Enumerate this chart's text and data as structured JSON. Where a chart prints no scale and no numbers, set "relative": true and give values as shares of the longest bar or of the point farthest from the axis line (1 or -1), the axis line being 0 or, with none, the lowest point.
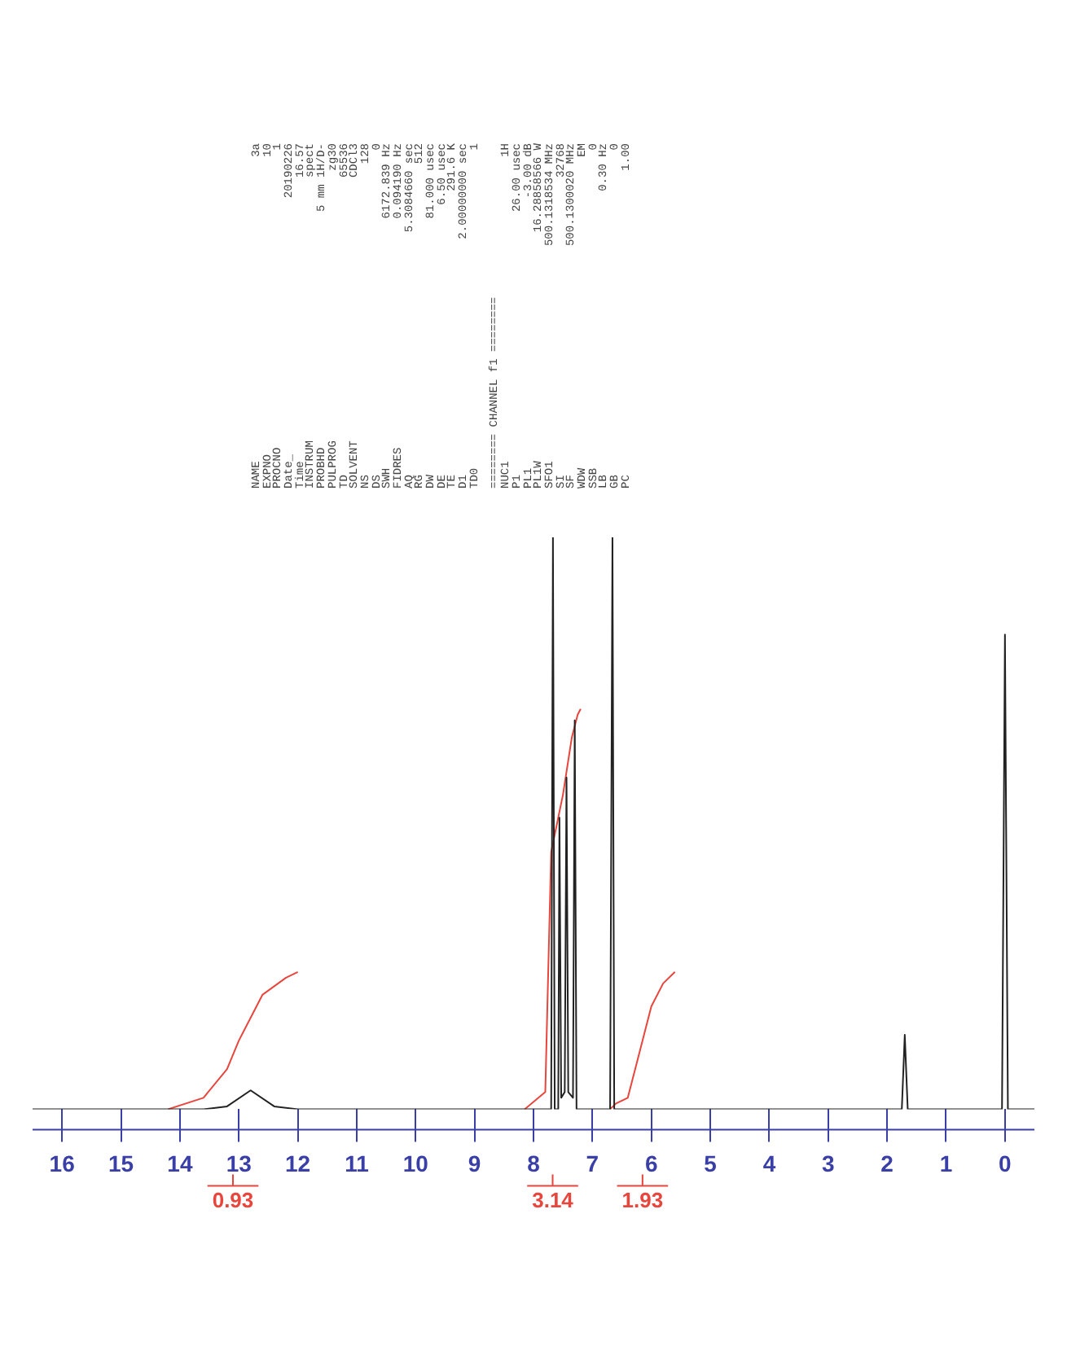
{
  "chart_data": {
    "type": "line",
    "relative": true,
    "legend": "bottom",
    "xlim": [
      16.5,
      -0.5
    ],
    "xticks": [
      0,
      1,
      2,
      3,
      4,
      5,
      6,
      7,
      8,
      9,
      10,
      11,
      12,
      13,
      14,
      15,
      16
    ],
    "series": [
      {
        "color": "#222222",
        "x": [
          16.5,
          13.6,
          13.2,
          12.8,
          12.4,
          12.0,
          8.0,
          7.7,
          7.67,
          7.64,
          7.58,
          7.56,
          7.53,
          7.47,
          7.44,
          7.41,
          7.33,
          7.3,
          7.27,
          6.7,
          6.66,
          6.63,
          1.75,
          1.7,
          1.65,
          0.05,
          0,
          -0.05,
          -0.5
        ],
        "values": [
          0,
          0,
          0.005,
          0.033,
          0.005,
          0,
          0,
          0,
          1.0,
          0,
          0,
          0.51,
          0.02,
          0.03,
          0.58,
          0.03,
          0.02,
          0.68,
          0,
          0,
          1.0,
          0,
          0,
          0.13,
          0,
          0,
          0.83,
          0,
          0
        ]
      },
      {
        "name": "0.93",
        "color": "#e8453c",
        "x": [
          14.2,
          13.6,
          13.2,
          13.0,
          12.6,
          12.2,
          12.0
        ],
        "values": [
          0,
          0.02,
          0.07,
          0.12,
          0.2,
          0.23,
          0.24
        ]
      },
      {
        "name": "1.93",
        "color": "#e8453c",
        "x": [
          6.7,
          6.6,
          6.4,
          6.2,
          6.0,
          5.8,
          5.6
        ],
        "values": [
          0,
          0.01,
          0.02,
          0.1,
          0.18,
          0.22,
          0.24
        ]
      },
      {
        "name": "3.14",
        "color": "#e8453c",
        "x": [
          8.15,
          7.8,
          7.7,
          7.5,
          7.35,
          7.25,
          7.2
        ],
        "values": [
          0,
          0.03,
          0.45,
          0.55,
          0.65,
          0.69,
          0.7
        ]
      }
    ],
    "annotations": [
      "NAME\t3a",
      "EXPNO\t10",
      "PROCNO\t1",
      "Date_\t20190226",
      "Time\t16.57",
      "INSTRUM\tspect",
      "PROBHD\t5 mm 1H/D-",
      "PULPROG\tzg30",
      "TD\t65536",
      "SOLVENT\tCDCl3",
      "NS\t128",
      "DS\t0",
      "SWH\t6172.839 Hz",
      "FIDRES\t0.094190 Hz",
      "AQ\t5.3084660 sec",
      "RG\t512",
      "DW\t81.000 usec",
      "DE\t6.50 usec",
      "TE\t291.6 K",
      "D1\t2.00000000 sec",
      "TD0\t1",
      "======== CHANNEL f1 ========",
      "NUC1\t1H",
      "P1\t26.00 usec",
      "PL1\t-3.00 dB",
      "PL1W\t16.28858566 W",
      "SFO1\t500.1318534 MHz",
      "SI\t32768",
      "SF\t500.1300020 MHz",
      "WDW\tEM",
      "SSB\t0",
      "LB\t0.30 Hz",
      "GB\t0",
      "PC\t1.00"
    ]
  }
}
